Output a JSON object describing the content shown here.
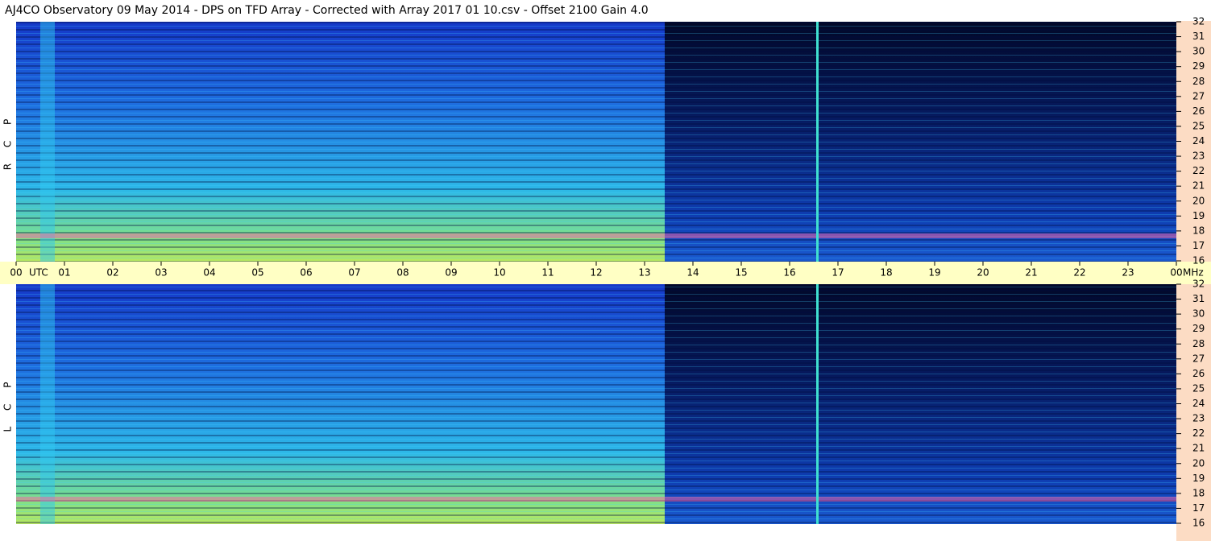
{
  "chart_data": [
    {
      "type": "spectrogram",
      "title": "AJ4CO Observatory  09 May 2014  -  DPS on TFD Array  -  Corrected with Array 2017 01 10.csv  -  Offset 2100  Gain 4.0",
      "ylabel": "R C P",
      "xlabel": "UTC",
      "y_unit": "MHz",
      "xlim": [
        0,
        24
      ],
      "xticks": [
        {
          "value": 0,
          "label": "00"
        },
        {
          "value": 1,
          "label": "01"
        },
        {
          "value": 2,
          "label": "02"
        },
        {
          "value": 3,
          "label": "03"
        },
        {
          "value": 4,
          "label": "04"
        },
        {
          "value": 5,
          "label": "05"
        },
        {
          "value": 6,
          "label": "06"
        },
        {
          "value": 7,
          "label": "07"
        },
        {
          "value": 8,
          "label": "08"
        },
        {
          "value": 9,
          "label": "09"
        },
        {
          "value": 10,
          "label": "10"
        },
        {
          "value": 11,
          "label": "11"
        },
        {
          "value": 12,
          "label": "12"
        },
        {
          "value": 13,
          "label": "13"
        },
        {
          "value": 14,
          "label": "14"
        },
        {
          "value": 15,
          "label": "15"
        },
        {
          "value": 16,
          "label": "16"
        },
        {
          "value": 17,
          "label": "17"
        },
        {
          "value": 18,
          "label": "18"
        },
        {
          "value": 19,
          "label": "19"
        },
        {
          "value": 20,
          "label": "20"
        },
        {
          "value": 21,
          "label": "21"
        },
        {
          "value": 22,
          "label": "22"
        },
        {
          "value": 23,
          "label": "23"
        },
        {
          "value": 24,
          "label": "00"
        }
      ],
      "ylim": [
        16,
        32
      ],
      "yticks": [
        16,
        17,
        18,
        19,
        20,
        21,
        22,
        23,
        24,
        25,
        26,
        27,
        28,
        29,
        30,
        31,
        32
      ]
    },
    {
      "type": "spectrogram",
      "ylabel": "L C P",
      "xlim": [
        0,
        24
      ],
      "ylim": [
        16,
        32
      ],
      "yticks": [
        16,
        17,
        18,
        19,
        20,
        21,
        22,
        23,
        24,
        25,
        26,
        27,
        28,
        29,
        30,
        31,
        32
      ]
    }
  ]
}
